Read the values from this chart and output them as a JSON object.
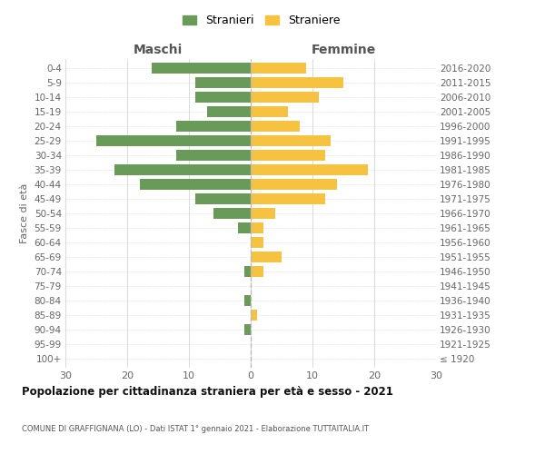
{
  "age_groups": [
    "100+",
    "95-99",
    "90-94",
    "85-89",
    "80-84",
    "75-79",
    "70-74",
    "65-69",
    "60-64",
    "55-59",
    "50-54",
    "45-49",
    "40-44",
    "35-39",
    "30-34",
    "25-29",
    "20-24",
    "15-19",
    "10-14",
    "5-9",
    "0-4"
  ],
  "birth_years": [
    "≤ 1920",
    "1921-1925",
    "1926-1930",
    "1931-1935",
    "1936-1940",
    "1941-1945",
    "1946-1950",
    "1951-1955",
    "1956-1960",
    "1961-1965",
    "1966-1970",
    "1971-1975",
    "1976-1980",
    "1981-1985",
    "1986-1990",
    "1991-1995",
    "1996-2000",
    "2001-2005",
    "2006-2010",
    "2011-2015",
    "2016-2020"
  ],
  "males": [
    0,
    0,
    1,
    0,
    1,
    0,
    1,
    0,
    0,
    2,
    6,
    9,
    18,
    22,
    12,
    25,
    12,
    7,
    9,
    9,
    16
  ],
  "females": [
    0,
    0,
    0,
    1,
    0,
    0,
    2,
    5,
    2,
    2,
    4,
    12,
    14,
    19,
    12,
    13,
    8,
    6,
    11,
    15,
    9
  ],
  "male_color": "#6a9a5a",
  "female_color": "#f5c242",
  "title": "Popolazione per cittadinanza straniera per età e sesso - 2021",
  "subtitle": "COMUNE DI GRAFFIGNANA (LO) - Dati ISTAT 1° gennaio 2021 - Elaborazione TUTTAITALIA.IT",
  "header_left": "Maschi",
  "header_right": "Femmine",
  "ylabel_left": "Fasce di età",
  "xlim": 30,
  "xticks": [
    -30,
    -20,
    -10,
    0,
    10,
    20,
    30
  ],
  "xtick_labels": [
    "30",
    "20",
    "10",
    "0",
    "10",
    "20",
    "30"
  ],
  "legend_stranieri": "Stranieri",
  "legend_straniere": "Straniere",
  "background_color": "#ffffff",
  "grid_color": "#cccccc",
  "bar_height": 0.75
}
